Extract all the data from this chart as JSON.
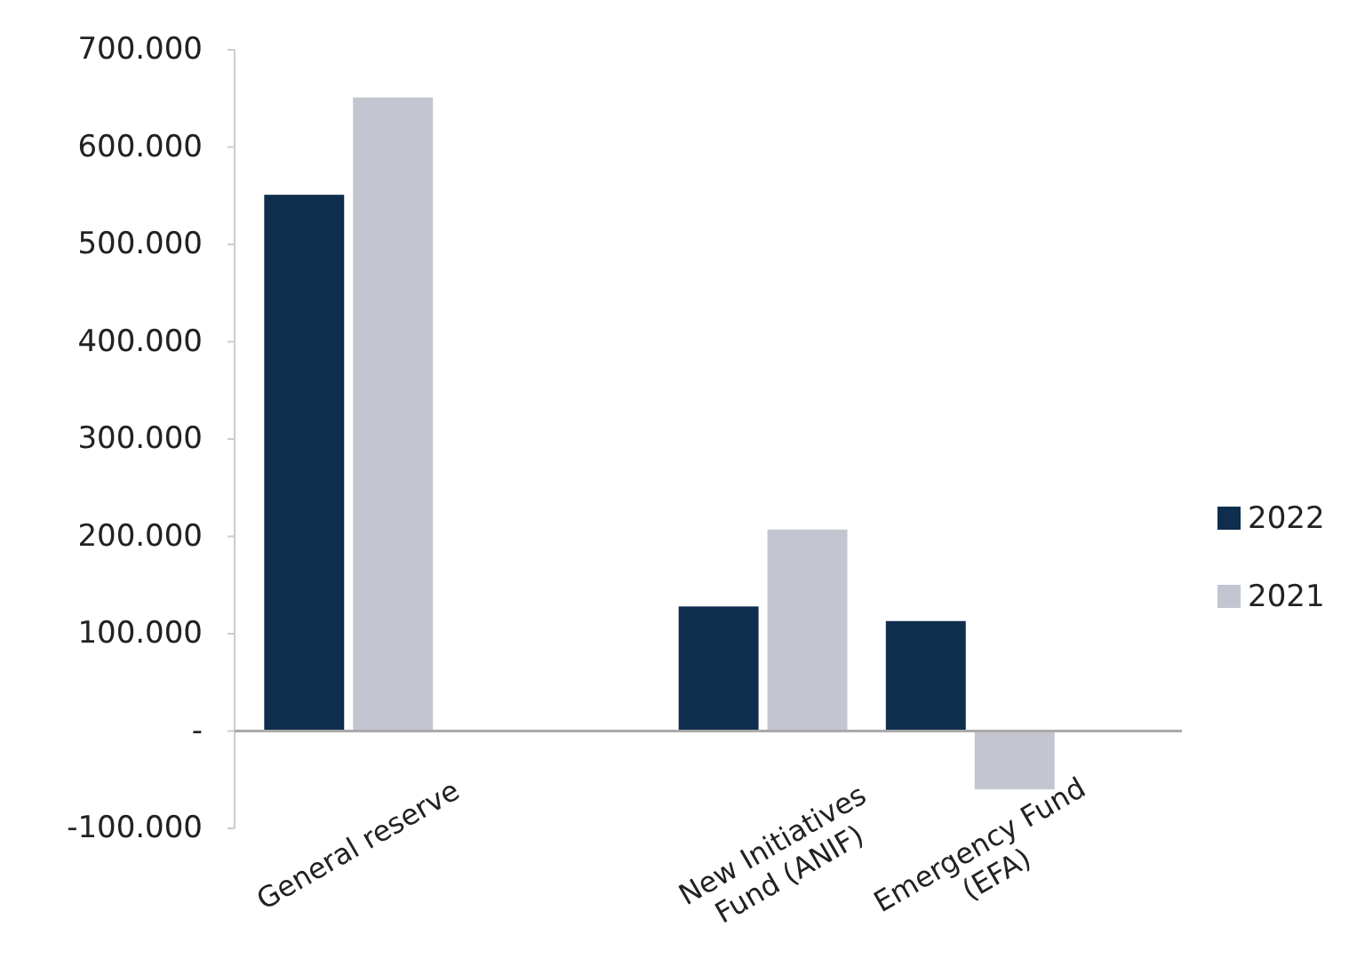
{
  "chart_data": {
    "type": "bar",
    "categories": [
      "General reserve",
      null,
      "New Initiatives Fund (ANIF)",
      "Emergency Fund (EFA)"
    ],
    "series": [
      {
        "name": "2022",
        "color": "#0f2d4d",
        "values": [
          551,
          null,
          128,
          113
        ]
      },
      {
        "name": "2021",
        "color": "#c3c5d0",
        "values": [
          651,
          null,
          207,
          -60
        ]
      }
    ],
    "ylim": [
      -100,
      700
    ],
    "yticks": [
      {
        "value": -100,
        "label": "-100.000"
      },
      {
        "value": 0,
        "label": "-"
      },
      {
        "value": 100,
        "label": "100.000"
      },
      {
        "value": 200,
        "label": "200.000"
      },
      {
        "value": 300,
        "label": "300.000"
      },
      {
        "value": 400,
        "label": "400.000"
      },
      {
        "value": 500,
        "label": "500.000"
      },
      {
        "value": 600,
        "label": "600.000"
      },
      {
        "value": 700,
        "label": "700.000"
      }
    ],
    "grid": false,
    "legend": "right"
  }
}
